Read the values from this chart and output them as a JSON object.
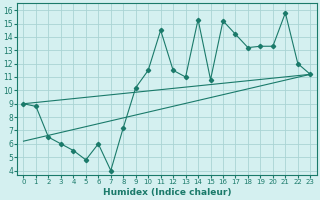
{
  "xlabel": "Humidex (Indice chaleur)",
  "bg_color": "#d4f0f0",
  "line_color": "#1a7a6a",
  "grid_color": "#aad4d4",
  "xlim": [
    -0.5,
    23.5
  ],
  "ylim": [
    3.7,
    16.5
  ],
  "xticks": [
    0,
    1,
    2,
    3,
    4,
    5,
    6,
    7,
    8,
    9,
    10,
    11,
    12,
    13,
    14,
    15,
    16,
    17,
    18,
    19,
    20,
    21,
    22,
    23
  ],
  "yticks": [
    4,
    5,
    6,
    7,
    8,
    9,
    10,
    11,
    12,
    13,
    14,
    15,
    16
  ],
  "line1_x": [
    0,
    1,
    2,
    3,
    4,
    5,
    6,
    7,
    8,
    9,
    10,
    11,
    12,
    13,
    14,
    15,
    16,
    17,
    18,
    19,
    20,
    21,
    22,
    23
  ],
  "line1_y": [
    9,
    8.8,
    6.5,
    6.0,
    5.5,
    4.8,
    6.0,
    4.0,
    7.2,
    10.2,
    11.5,
    14.5,
    11.5,
    11.0,
    15.3,
    10.8,
    15.2,
    14.2,
    13.2,
    13.3,
    13.3,
    15.8,
    12.0,
    11.2
  ],
  "line2_x": [
    0,
    23
  ],
  "line2_y": [
    9.0,
    11.2
  ],
  "line3_x": [
    0,
    23
  ],
  "line3_y": [
    6.2,
    11.2
  ]
}
